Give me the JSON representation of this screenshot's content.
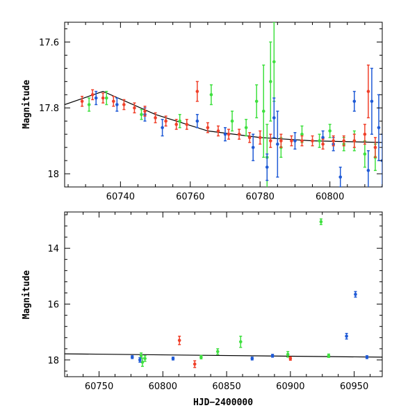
{
  "colors": {
    "green": "#3fe03f",
    "blue": "#1f5ad6",
    "red": "#f0402a",
    "curve": "#000000"
  },
  "chart_data": [
    {
      "type": "scatter",
      "title": "",
      "xlabel": "",
      "ylabel": "Magnitude",
      "xlim": [
        60724,
        60815
      ],
      "ylim": [
        18.04,
        17.54
      ],
      "xticks": [
        60740,
        60760,
        60780,
        60800
      ],
      "yticks": [
        17.6,
        17.8,
        18
      ],
      "ytick_labels": [
        "17.6",
        "17.8",
        "18"
      ],
      "model_curve": {
        "x": [
          60724,
          60735,
          60750,
          60765,
          60780,
          60795,
          60815
        ],
        "y": [
          17.79,
          17.75,
          17.82,
          17.87,
          17.89,
          17.9,
          17.905
        ]
      },
      "series": [
        {
          "name": "green",
          "points": [
            {
              "x": 60731,
              "y": 17.79,
              "e": 0.02
            },
            {
              "x": 60736,
              "y": 17.77,
              "e": 0.02
            },
            {
              "x": 60746,
              "y": 17.82,
              "e": 0.015
            },
            {
              "x": 60757,
              "y": 17.84,
              "e": 0.02
            },
            {
              "x": 60766,
              "y": 17.76,
              "e": 0.03
            },
            {
              "x": 60772,
              "y": 17.84,
              "e": 0.03
            },
            {
              "x": 60776,
              "y": 17.86,
              "e": 0.025
            },
            {
              "x": 60779,
              "y": 17.78,
              "e": 0.05
            },
            {
              "x": 60781,
              "y": 17.81,
              "e": 0.14
            },
            {
              "x": 60782,
              "y": 17.95,
              "e": 0.1
            },
            {
              "x": 60783,
              "y": 17.72,
              "e": 0.12
            },
            {
              "x": 60784,
              "y": 17.66,
              "e": 0.12
            },
            {
              "x": 60786,
              "y": 17.92,
              "e": 0.03
            },
            {
              "x": 60792,
              "y": 17.88,
              "e": 0.025
            },
            {
              "x": 60797,
              "y": 17.9,
              "e": 0.02
            },
            {
              "x": 60800,
              "y": 17.87,
              "e": 0.02
            },
            {
              "x": 60804,
              "y": 17.91,
              "e": 0.02
            },
            {
              "x": 60807,
              "y": 17.9,
              "e": 0.03
            },
            {
              "x": 60810,
              "y": 17.94,
              "e": 0.04
            },
            {
              "x": 60813,
              "y": 17.95,
              "e": 0.04
            }
          ]
        },
        {
          "name": "blue",
          "points": [
            {
              "x": 60733,
              "y": 17.77,
              "e": 0.02
            },
            {
              "x": 60739,
              "y": 17.79,
              "e": 0.02
            },
            {
              "x": 60747,
              "y": 17.82,
              "e": 0.02
            },
            {
              "x": 60752,
              "y": 17.86,
              "e": 0.025
            },
            {
              "x": 60762,
              "y": 17.84,
              "e": 0.02
            },
            {
              "x": 60770,
              "y": 17.88,
              "e": 0.02
            },
            {
              "x": 60778,
              "y": 17.92,
              "e": 0.04
            },
            {
              "x": 60782,
              "y": 17.98,
              "e": 0.04
            },
            {
              "x": 60784,
              "y": 17.83,
              "e": 0.06
            },
            {
              "x": 60785,
              "y": 17.91,
              "e": 0.1
            },
            {
              "x": 60790,
              "y": 17.9,
              "e": 0.025
            },
            {
              "x": 60798,
              "y": 17.89,
              "e": 0.02
            },
            {
              "x": 60801,
              "y": 17.91,
              "e": 0.02
            },
            {
              "x": 60803,
              "y": 18.01,
              "e": 0.03
            },
            {
              "x": 60807,
              "y": 17.78,
              "e": 0.03
            },
            {
              "x": 60811,
              "y": 17.99,
              "e": 0.06
            },
            {
              "x": 60812,
              "y": 17.78,
              "e": 0.1
            },
            {
              "x": 60814,
              "y": 17.86,
              "e": 0.1
            },
            {
              "x": 60815,
              "y": 17.96,
              "e": 0.08
            }
          ]
        },
        {
          "name": "red",
          "points": [
            {
              "x": 60729,
              "y": 17.78,
              "e": 0.015
            },
            {
              "x": 60732,
              "y": 17.76,
              "e": 0.015
            },
            {
              "x": 60735,
              "y": 17.77,
              "e": 0.015
            },
            {
              "x": 60738,
              "y": 17.78,
              "e": 0.015
            },
            {
              "x": 60741,
              "y": 17.79,
              "e": 0.015
            },
            {
              "x": 60744,
              "y": 17.8,
              "e": 0.015
            },
            {
              "x": 60747,
              "y": 17.81,
              "e": 0.015
            },
            {
              "x": 60750,
              "y": 17.83,
              "e": 0.015
            },
            {
              "x": 60753,
              "y": 17.84,
              "e": 0.015
            },
            {
              "x": 60756,
              "y": 17.85,
              "e": 0.015
            },
            {
              "x": 60759,
              "y": 17.85,
              "e": 0.015
            },
            {
              "x": 60762,
              "y": 17.75,
              "e": 0.03
            },
            {
              "x": 60765,
              "y": 17.86,
              "e": 0.015
            },
            {
              "x": 60768,
              "y": 17.87,
              "e": 0.015
            },
            {
              "x": 60771,
              "y": 17.88,
              "e": 0.015
            },
            {
              "x": 60774,
              "y": 17.88,
              "e": 0.015
            },
            {
              "x": 60777,
              "y": 17.89,
              "e": 0.015
            },
            {
              "x": 60780,
              "y": 17.89,
              "e": 0.02
            },
            {
              "x": 60783,
              "y": 17.9,
              "e": 0.02
            },
            {
              "x": 60786,
              "y": 17.9,
              "e": 0.02
            },
            {
              "x": 60789,
              "y": 17.9,
              "e": 0.015
            },
            {
              "x": 60792,
              "y": 17.9,
              "e": 0.015
            },
            {
              "x": 60795,
              "y": 17.9,
              "e": 0.015
            },
            {
              "x": 60798,
              "y": 17.91,
              "e": 0.015
            },
            {
              "x": 60801,
              "y": 17.9,
              "e": 0.015
            },
            {
              "x": 60804,
              "y": 17.9,
              "e": 0.015
            },
            {
              "x": 60807,
              "y": 17.9,
              "e": 0.02
            },
            {
              "x": 60810,
              "y": 17.88,
              "e": 0.03
            },
            {
              "x": 60811,
              "y": 17.75,
              "e": 0.08
            },
            {
              "x": 60813,
              "y": 17.92,
              "e": 0.03
            }
          ]
        }
      ]
    },
    {
      "type": "scatter",
      "title": "",
      "xlabel": "HJD−2400000",
      "ylabel": "Magnitude",
      "xlim": [
        60723,
        60972
      ],
      "ylim": [
        18.6,
        12.7
      ],
      "xticks": [
        60750,
        60800,
        60850,
        60900,
        60950
      ],
      "yticks": [
        14,
        16,
        18
      ],
      "ytick_labels": [
        "14",
        "16",
        "18"
      ],
      "model_curve": {
        "x": [
          60723,
          60972
        ],
        "y": [
          17.78,
          17.9
        ]
      },
      "series": [
        {
          "name": "green",
          "points": [
            {
              "x": 60783,
              "y": 17.85,
              "e": 0.1
            },
            {
              "x": 60784,
              "y": 18.08,
              "e": 0.15
            },
            {
              "x": 60786,
              "y": 17.95,
              "e": 0.1
            },
            {
              "x": 60830,
              "y": 17.9,
              "e": 0.06
            },
            {
              "x": 60843,
              "y": 17.7,
              "e": 0.1
            },
            {
              "x": 60861,
              "y": 17.35,
              "e": 0.2
            },
            {
              "x": 60898,
              "y": 17.8,
              "e": 0.1
            },
            {
              "x": 60924,
              "y": 13.05,
              "e": 0.1
            },
            {
              "x": 60930,
              "y": 17.85,
              "e": 0.06
            }
          ]
        },
        {
          "name": "blue",
          "points": [
            {
              "x": 60776,
              "y": 17.9,
              "e": 0.05
            },
            {
              "x": 60782,
              "y": 18.0,
              "e": 0.08
            },
            {
              "x": 60808,
              "y": 17.95,
              "e": 0.05
            },
            {
              "x": 60870,
              "y": 17.95,
              "e": 0.05
            },
            {
              "x": 60886,
              "y": 17.85,
              "e": 0.05
            },
            {
              "x": 60944,
              "y": 17.15,
              "e": 0.1
            },
            {
              "x": 60951,
              "y": 15.65,
              "e": 0.1
            },
            {
              "x": 60960,
              "y": 17.9,
              "e": 0.05
            }
          ]
        },
        {
          "name": "red",
          "points": [
            {
              "x": 60813,
              "y": 17.3,
              "e": 0.15
            },
            {
              "x": 60825,
              "y": 18.15,
              "e": 0.12
            },
            {
              "x": 60900,
              "y": 17.95,
              "e": 0.06
            }
          ]
        }
      ]
    }
  ]
}
